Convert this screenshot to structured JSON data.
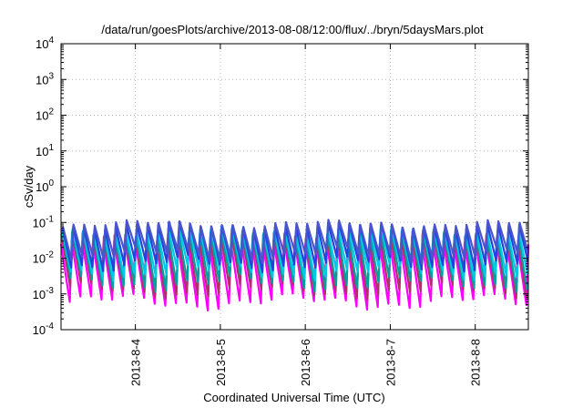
{
  "chart_data": {
    "type": "line",
    "title": "/data/run/goesPlots/archive/2013-08-08/12:00/flux/../bryn/5daysMars.plot",
    "xlabel": "Coordinated Universal Time (UTC)",
    "ylabel": "cSv/day",
    "y_scale": "log",
    "ylim_exponents": [
      -4,
      4
    ],
    "y_tick_base": "10",
    "y_ticks": [
      {
        "label": "10",
        "exp": "-4"
      },
      {
        "label": "10",
        "exp": "-3"
      },
      {
        "label": "10",
        "exp": "-2"
      },
      {
        "label": "10",
        "exp": "-1"
      },
      {
        "label": "10",
        "exp": "0"
      },
      {
        "label": "10",
        "exp": "1"
      },
      {
        "label": "10",
        "exp": "2"
      },
      {
        "label": "10",
        "exp": "3"
      },
      {
        "label": "10",
        "exp": "4"
      }
    ],
    "x_range": [
      "2013-08-03T03:00",
      "2013-08-08T15:00"
    ],
    "x_ticks": [
      {
        "label": "2013-8-4",
        "date": "2013-08-04"
      },
      {
        "label": "2013-8-5",
        "date": "2013-08-05"
      },
      {
        "label": "2013-8-6",
        "date": "2013-08-06"
      },
      {
        "label": "2013-8-7",
        "date": "2013-08-07"
      },
      {
        "label": "2013-8-8",
        "date": "2013-08-08"
      }
    ],
    "grid": true,
    "legend": "none",
    "oscillation_period_hours": 3,
    "series": [
      {
        "color": "#ff00ff",
        "peak": 0.025,
        "trough": 0.0006
      },
      {
        "color": "#b0306a",
        "peak": 0.04,
        "trough": 0.0012
      },
      {
        "color": "#00a0a0",
        "peak": 0.05,
        "trough": 0.002
      },
      {
        "color": "#00c8e6",
        "peak": 0.06,
        "trough": 0.004
      },
      {
        "color": "#2244dd",
        "peak": 0.08,
        "trough": 0.007
      },
      {
        "color": "#4a55cc",
        "peak": 0.09,
        "trough": 0.012
      }
    ]
  }
}
